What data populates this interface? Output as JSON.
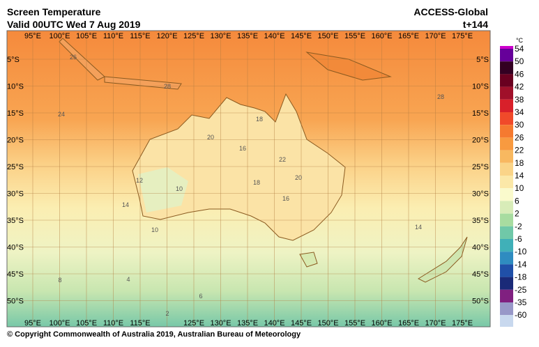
{
  "header": {
    "title": "Screen Temperature",
    "valid": "Valid 00UTC Wed 7 Aug 2019",
    "model": "ACCESS-Global",
    "lead": "t+144"
  },
  "map": {
    "lon_top": [
      "95°E",
      "100°E",
      "105°E",
      "110°E",
      "115°E",
      "120°E",
      "125°E",
      "130°E",
      "135°E",
      "140°E",
      "145°E",
      "150°E",
      "155°E",
      "160°E",
      "165°E",
      "170°E",
      "175°E"
    ],
    "lon_bottom": [
      "95°E",
      "100°E",
      "105°E",
      "110°E",
      "115°E",
      "125°E",
      "130°E",
      "135°E",
      "140°E",
      "145°E",
      "150°E",
      "155°E",
      "160°E",
      "165°E",
      "170°E",
      "175°E"
    ],
    "lat": [
      "5°S",
      "10°S",
      "15°S",
      "20°S",
      "25°S",
      "30°S",
      "35°S",
      "40°S",
      "45°S",
      "50°S"
    ],
    "contour_labels": [
      "26",
      "28",
      "28",
      "24",
      "20",
      "16",
      "18",
      "22",
      "12",
      "10",
      "20",
      "18",
      "16",
      "14",
      "10",
      "14",
      "8",
      "4",
      "6",
      "2"
    ]
  },
  "colorbar": {
    "unit": "°C",
    "labels": [
      54,
      50,
      46,
      42,
      38,
      34,
      30,
      26,
      22,
      18,
      14,
      10,
      6,
      2,
      -2,
      -6,
      -10,
      -14,
      -18,
      -25,
      -35,
      -60
    ],
    "colors": [
      "#cc00cc",
      "#66009a",
      "#330022",
      "#6a0020",
      "#a0102a",
      "#d8202a",
      "#f04a2a",
      "#f57a30",
      "#f89a40",
      "#f8b860",
      "#fad488",
      "#fbe8a8",
      "#fafacc",
      "#d8ecb8",
      "#a8dca0",
      "#70c8a8",
      "#40b0b8",
      "#2f8cc0",
      "#2050a8",
      "#1a2a78",
      "#802080",
      "#9898c8",
      "#c8d8ee"
    ]
  },
  "footer": {
    "copyright": "© Copyright Commonwealth of Australia 2019, Australian Bureau of Meteorology"
  }
}
